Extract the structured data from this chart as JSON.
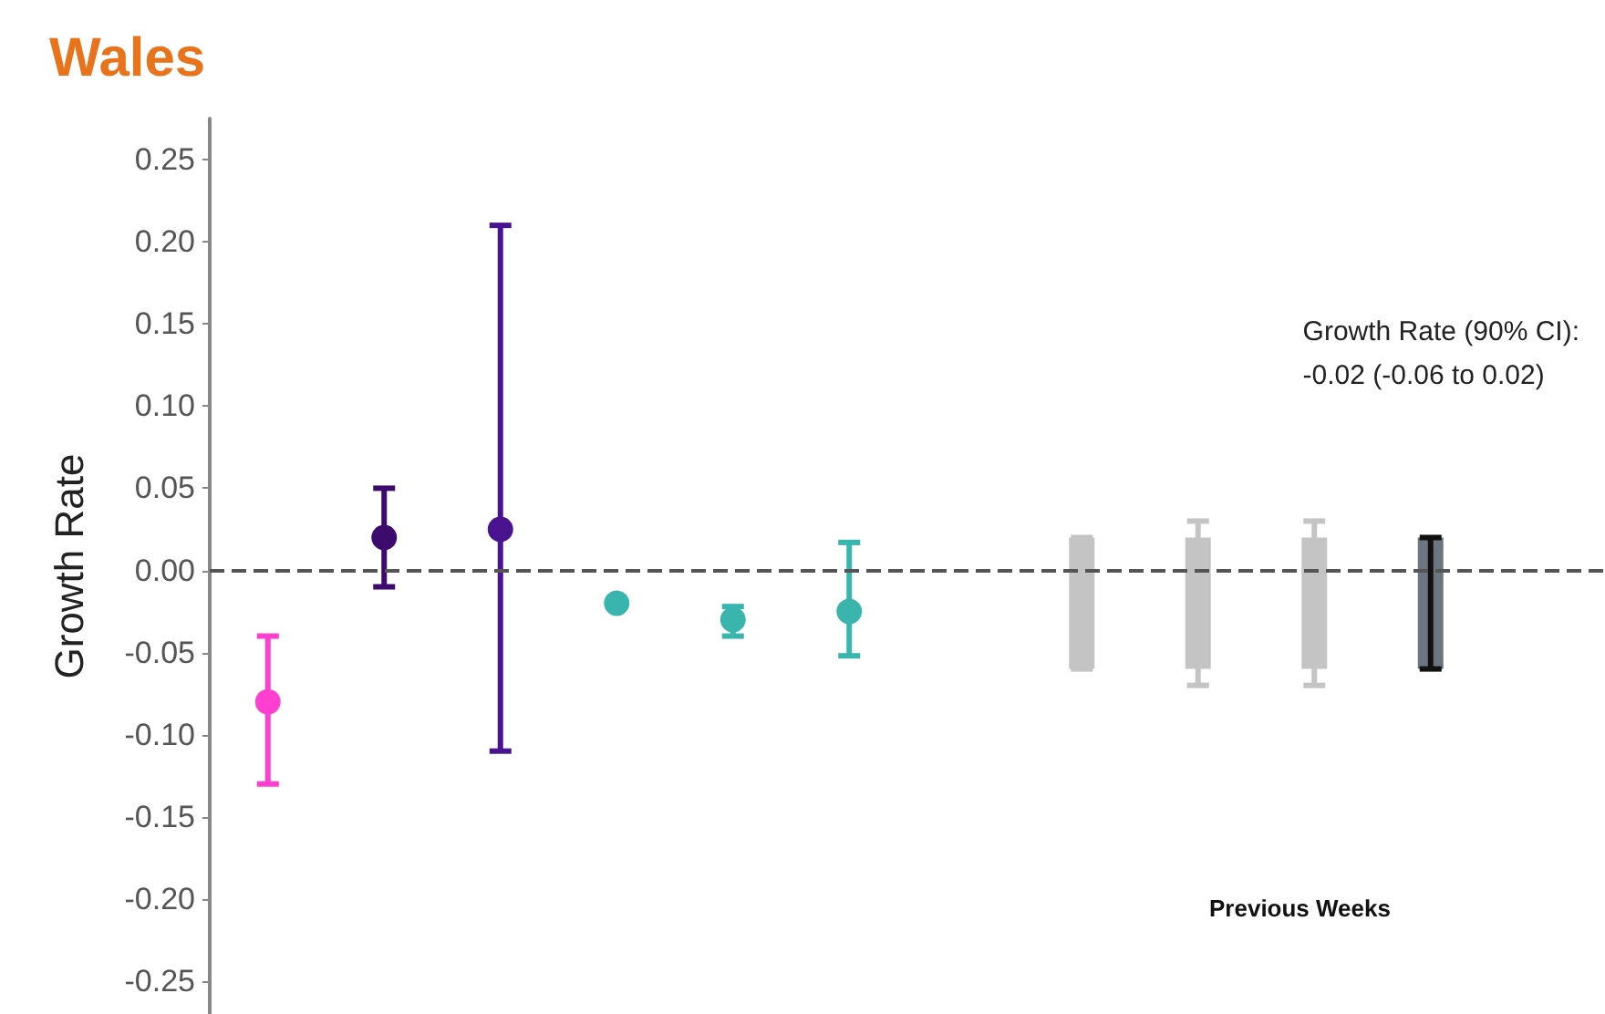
{
  "chart_data": {
    "type": "scatter",
    "title": "Wales",
    "ylabel": "Growth Rate",
    "categories": [
      null,
      null,
      null,
      null,
      null,
      null,
      null,
      null,
      null,
      null,
      null,
      null
    ],
    "series": [
      {
        "marker": "circle",
        "colors": [
          "#ff3fcf",
          "#3d0a6e",
          "#4a1490",
          "#3ab5ad",
          "#3ab5ad",
          "#3ab5ad",
          null,
          null,
          null,
          null,
          null,
          null
        ],
        "values": [
          -0.08,
          0.02,
          0.025,
          -0.02,
          -0.03,
          -0.025,
          null,
          null,
          null,
          null,
          null,
          null
        ],
        "errors": [
          [
            -0.13,
            -0.04
          ],
          [
            -0.01,
            0.05
          ],
          [
            -0.11,
            0.21
          ],
          null,
          [
            -0.04,
            -0.022
          ],
          [
            -0.052,
            0.017
          ],
          null,
          null,
          null,
          null,
          null,
          null
        ]
      },
      {
        "type": "bar",
        "colors": [
          null,
          null,
          null,
          null,
          null,
          null,
          null,
          "#c4c4c4",
          "#c4c4c4",
          "#c4c4c4",
          "#6b7680",
          null
        ],
        "base": [
          null,
          null,
          null,
          null,
          null,
          null,
          null,
          -0.06,
          -0.06,
          -0.06,
          -0.06,
          null
        ],
        "values": [
          null,
          null,
          null,
          null,
          null,
          null,
          null,
          0.08,
          0.08,
          0.08,
          0.08,
          null
        ],
        "errors": [
          null,
          null,
          null,
          null,
          null,
          null,
          null,
          [
            -0.06,
            0.02
          ],
          [
            -0.07,
            0.03
          ],
          [
            -0.07,
            0.03
          ],
          [
            -0.06,
            0.02
          ],
          null
        ]
      }
    ],
    "ylim": [
      -0.27,
      0.275
    ],
    "yticks": [
      {
        "value": -0.25,
        "label": "-0.25"
      },
      {
        "value": -0.2,
        "label": "-0.20"
      },
      {
        "value": -0.15,
        "label": "-0.15"
      },
      {
        "value": -0.1,
        "label": "-0.10"
      },
      {
        "value": -0.05,
        "label": "-0.05"
      },
      {
        "value": 0,
        "label": "0.00"
      },
      {
        "value": 0.05,
        "label": "0.05"
      },
      {
        "value": 0.1,
        "label": "0.10"
      },
      {
        "value": 0.15,
        "label": "0.15"
      },
      {
        "value": 0.2,
        "label": "0.20"
      },
      {
        "value": 0.25,
        "label": "0.25"
      }
    ],
    "ref_lines": [
      {
        "axis": "y",
        "value": 0,
        "color": "#555555",
        "line_style": "dashed"
      }
    ],
    "annotations": [
      "Growth Rate (90% CI):\n-0.02 (-0.06 to 0.02)",
      "Previous Weeks"
    ],
    "tick_labels": "y",
    "grid": false
  }
}
